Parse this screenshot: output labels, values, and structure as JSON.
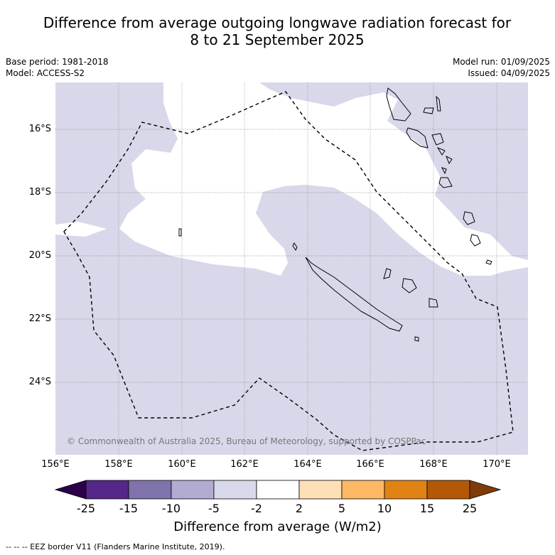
{
  "title": {
    "line1": "Difference from average outgoing longwave radiation forecast for",
    "line2": "8 to 21 September 2025"
  },
  "meta": {
    "base_period": "Base period: 1981-2018",
    "model": "Model: ACCESS-S2",
    "model_run": "Model run: 01/09/2025",
    "issued": "Issued: 04/09/2025"
  },
  "map": {
    "lat_labels": [
      "16°S",
      "18°S",
      "20°S",
      "22°S",
      "24°S"
    ],
    "lon_labels": [
      "156°E",
      "158°E",
      "160°E",
      "162°E",
      "164°E",
      "166°E",
      "168°E",
      "170°E"
    ],
    "copyright": "© Commonwealth of Australia 2025, Bureau of Meteorology, supported by COSPPac",
    "colors": {
      "ocean_anomaly": "#d8d8ea",
      "neutral": "#ffffff",
      "eez_border": "#000000"
    }
  },
  "colorbar": {
    "ticks": [
      "-25",
      "-15",
      "-10",
      "-5",
      "-2",
      "2",
      "5",
      "10",
      "15",
      "25"
    ],
    "colors": [
      "#2d004b",
      "#542788",
      "#8073ac",
      "#b2abd2",
      "#d8daeb",
      "#ffffff",
      "#fee0b6",
      "#fdb863",
      "#e08214",
      "#b35806",
      "#7f3b08"
    ],
    "title": "Difference from average (W/m2)"
  },
  "footer": "--  --  -- EEZ border V11 (Flanders Marine Institute, 2019)."
}
